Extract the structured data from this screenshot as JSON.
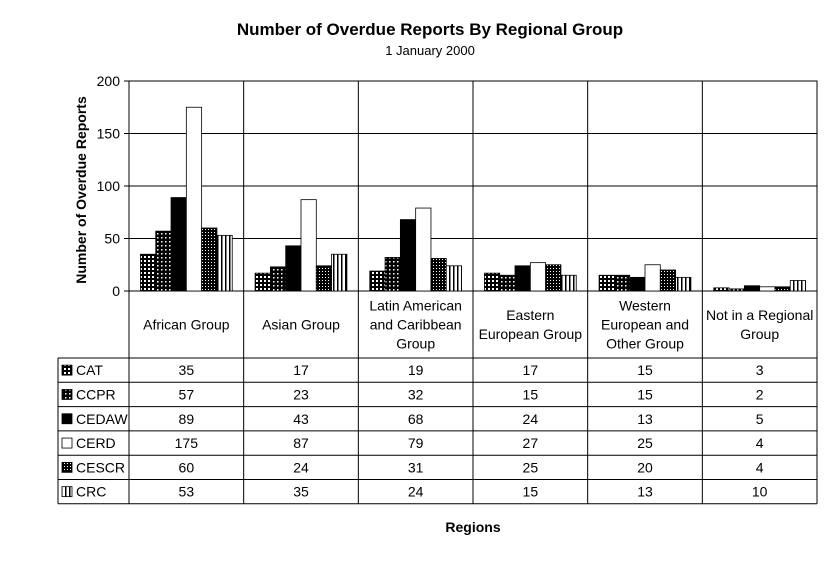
{
  "chart_data": {
    "type": "bar",
    "title": "Number of Overdue Reports By Regional Group",
    "subtitle": "1 January 2000",
    "xlabel": "Regions",
    "ylabel": "Number of Overdue Reports",
    "ylim": [
      0,
      200
    ],
    "yticks": [
      "0",
      "50",
      "100",
      "150",
      "200"
    ],
    "grid": true,
    "legend": "data-table",
    "categories": [
      [
        "African Group"
      ],
      [
        "Asian Group"
      ],
      [
        "Latin American",
        "and Caribbean",
        "Group"
      ],
      [
        "Eastern",
        "European Group"
      ],
      [
        "Western",
        "European and",
        "Other Group"
      ],
      [
        "Not in a Regional",
        "Group"
      ]
    ],
    "series": [
      {
        "name": "CAT",
        "pattern": "checker",
        "values": [
          35,
          17,
          19,
          17,
          15,
          3
        ]
      },
      {
        "name": "CCPR",
        "pattern": "dots",
        "values": [
          57,
          23,
          32,
          15,
          15,
          2
        ]
      },
      {
        "name": "CEDAW",
        "pattern": "solid",
        "values": [
          89,
          43,
          68,
          24,
          13,
          5
        ]
      },
      {
        "name": "CERD",
        "pattern": "white",
        "values": [
          175,
          87,
          79,
          27,
          25,
          4
        ]
      },
      {
        "name": "CESCR",
        "pattern": "dense",
        "values": [
          60,
          24,
          31,
          25,
          20,
          4
        ]
      },
      {
        "name": "CRC",
        "pattern": "vstripe",
        "values": [
          53,
          35,
          24,
          15,
          13,
          10
        ]
      }
    ]
  }
}
